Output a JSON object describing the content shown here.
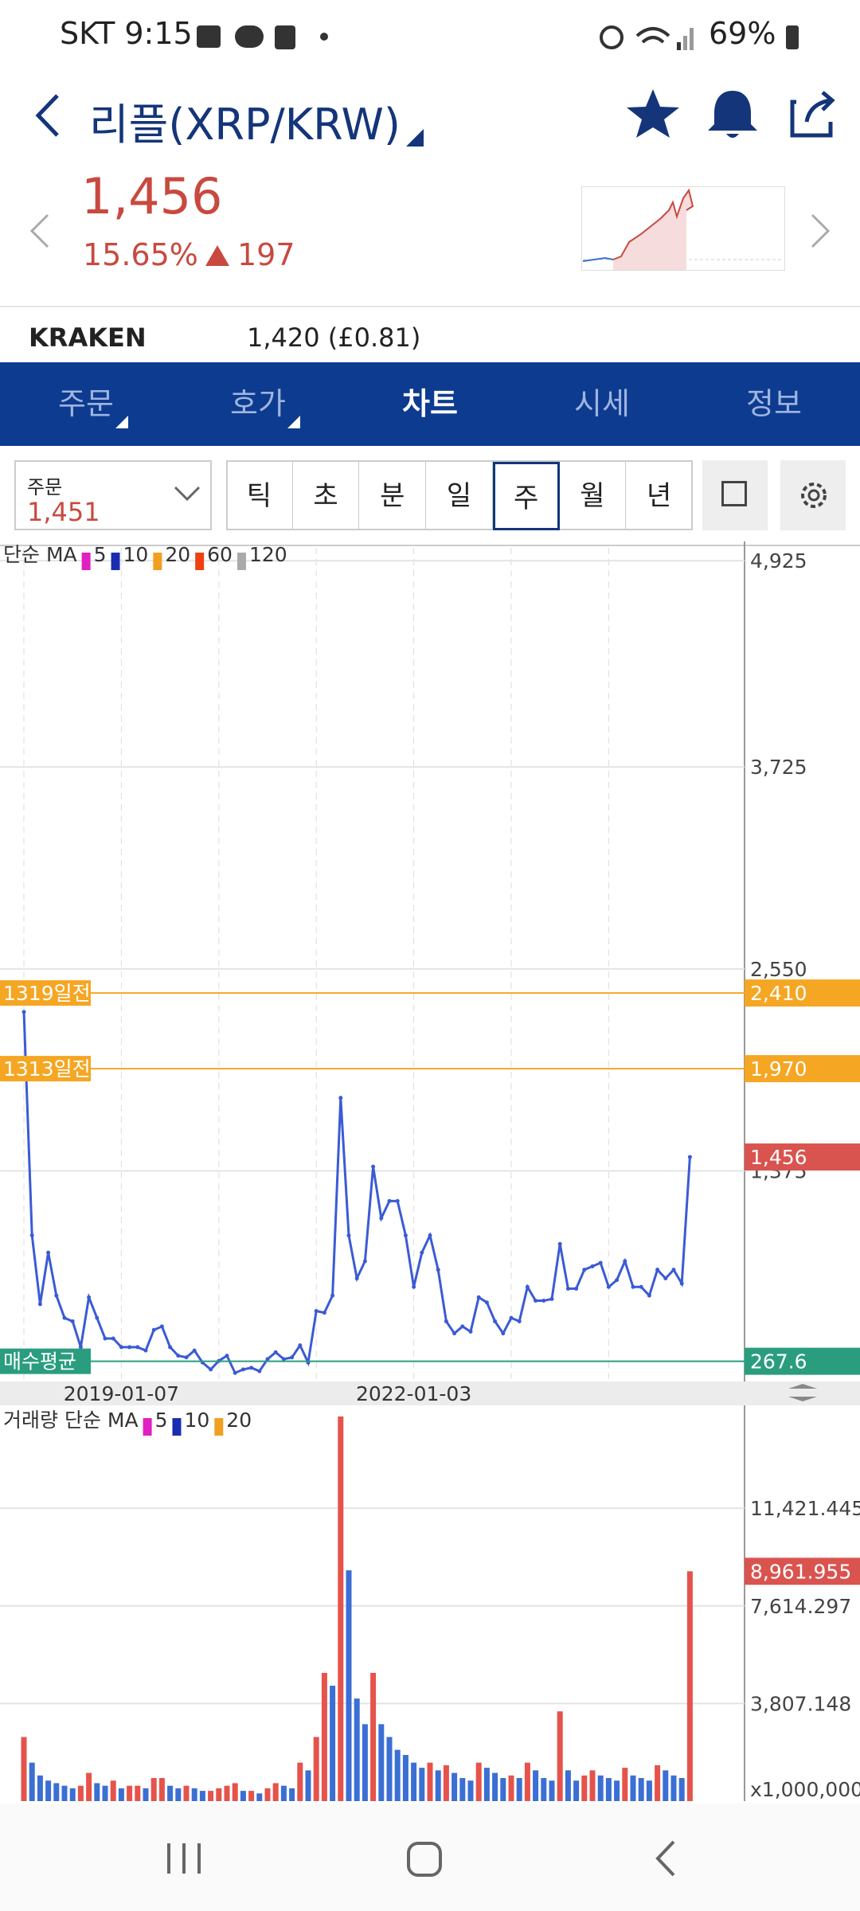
{
  "status_bar": {
    "time": "SKT 9:15",
    "battery": "69%"
  },
  "header": {
    "title": "리플(XRP/KRW)"
  },
  "ticker": {
    "price": "1,456",
    "change_pct": "15.65%",
    "change": "197"
  },
  "exchange": {
    "name": "KRAKEN",
    "quote": "1,420 (£0.81)"
  },
  "tabs": [
    "주문",
    "호가",
    "차트",
    "시세",
    "정보"
  ],
  "active_tab": 2,
  "order_select": {
    "label": "주문",
    "value": "1,451"
  },
  "periods": [
    "틱",
    "초",
    "분",
    "일",
    "주",
    "월",
    "년"
  ],
  "active_period": 4,
  "chart_data": [
    {
      "type": "line",
      "legend_title": "단순 MA",
      "ma_legend": [
        {
          "name": "5",
          "color": "#e020c0"
        },
        {
          "name": "10",
          "color": "#1a2db0"
        },
        {
          "name": "20",
          "color": "#f0a020"
        },
        {
          "name": "60",
          "color": "#f04010"
        },
        {
          "name": "120",
          "color": "#aaaaaa"
        }
      ],
      "categories": [
        null,
        null,
        null,
        null,
        null,
        null,
        null,
        null,
        null,
        null,
        null,
        null,
        "2019-01-07",
        null,
        null,
        null,
        null,
        null,
        null,
        null,
        null,
        null,
        null,
        null,
        null,
        null,
        null,
        null,
        null,
        null,
        null,
        null,
        null,
        null,
        null,
        null,
        null,
        null,
        null,
        null,
        null,
        null,
        null,
        null,
        null,
        null,
        null,
        null,
        "2022-01-03",
        null,
        null,
        null,
        null,
        null,
        null,
        null,
        null,
        null,
        null,
        null,
        null,
        null,
        null,
        null,
        null,
        null,
        null,
        null,
        null,
        null,
        null,
        null,
        null,
        null,
        null,
        null,
        null,
        null,
        null,
        null,
        null,
        null,
        null
      ],
      "values": [
        2300,
        1000,
        600,
        900,
        650,
        520,
        500,
        350,
        640,
        520,
        400,
        400,
        350,
        350,
        350,
        330,
        450,
        470,
        350,
        300,
        290,
        330,
        260,
        220,
        270,
        300,
        200,
        220,
        230,
        210,
        280,
        320,
        280,
        290,
        360,
        260,
        560,
        550,
        650,
        1800,
        1000,
        750,
        850,
        1400,
        1100,
        1200,
        1200,
        1000,
        700,
        900,
        1000,
        800,
        500,
        430,
        470,
        440,
        640,
        610,
        500,
        430,
        520,
        500,
        700,
        620,
        620,
        630,
        950,
        690,
        690,
        800,
        820,
        840,
        700,
        740,
        850,
        700,
        700,
        650,
        800,
        750,
        800,
        720,
        1456
      ],
      "color": "#3b5bd4",
      "ylim": [
        150,
        5000
      ],
      "yticks": [
        {
          "value": 4925,
          "label": "4,925"
        },
        {
          "value": 3725,
          "label": "3,725"
        },
        {
          "value": 2550,
          "label": "2,550"
        },
        {
          "value": 1375,
          "label": "1,375"
        }
      ],
      "reference_lines": [
        {
          "value": 2410,
          "label": "1319일전",
          "value_label": "2,410",
          "color": "#f5a623"
        },
        {
          "value": 1970,
          "label": "1313일전",
          "value_label": "1,970",
          "color": "#f5a623"
        },
        {
          "value": 267.6,
          "label": "매수평균",
          "value_label": "267.6",
          "color": "#2a9d7f"
        }
      ],
      "current": {
        "value": 1456,
        "label": "1,456",
        "color": "#d9534f"
      },
      "grid": true
    },
    {
      "type": "bar",
      "legend_title": "거래량 단순 MA",
      "ma_legend": [
        {
          "name": "5",
          "color": "#e020c0"
        },
        {
          "name": "10",
          "color": "#1a2db0"
        },
        {
          "name": "20",
          "color": "#f0a020"
        }
      ],
      "values": [
        2500,
        1500,
        1000,
        800,
        700,
        600,
        500,
        600,
        1100,
        700,
        600,
        800,
        500,
        600,
        600,
        500,
        900,
        900,
        600,
        500,
        600,
        500,
        400,
        400,
        500,
        600,
        700,
        400,
        400,
        300,
        500,
        700,
        600,
        500,
        1500,
        1200,
        2500,
        5000,
        4500,
        15000,
        9000,
        4000,
        3000,
        5000,
        3000,
        2500,
        2000,
        1800,
        1500,
        1300,
        1500,
        1200,
        1400,
        1100,
        900,
        800,
        1500,
        1300,
        1100,
        900,
        1000,
        900,
        1500,
        1200,
        900,
        800,
        3500,
        1200,
        800,
        1000,
        1200,
        1000,
        900,
        800,
        1300,
        1000,
        900,
        800,
        1400,
        1200,
        1000,
        900,
        8961.955
      ],
      "colors": [
        "#e5534b",
        "#3b6fd4"
      ],
      "ylim": [
        0,
        15400
      ],
      "yticks": [
        {
          "value": 11421.445,
          "label": "11,421.445"
        },
        {
          "value": 7614.297,
          "label": "7,614.297"
        },
        {
          "value": 3807.148,
          "label": "3,807.148"
        }
      ],
      "unit_label": "x1,000,000",
      "current": {
        "value": 8961.955,
        "label": "8,961.955",
        "color": "#d9534f"
      },
      "grid": true
    }
  ]
}
